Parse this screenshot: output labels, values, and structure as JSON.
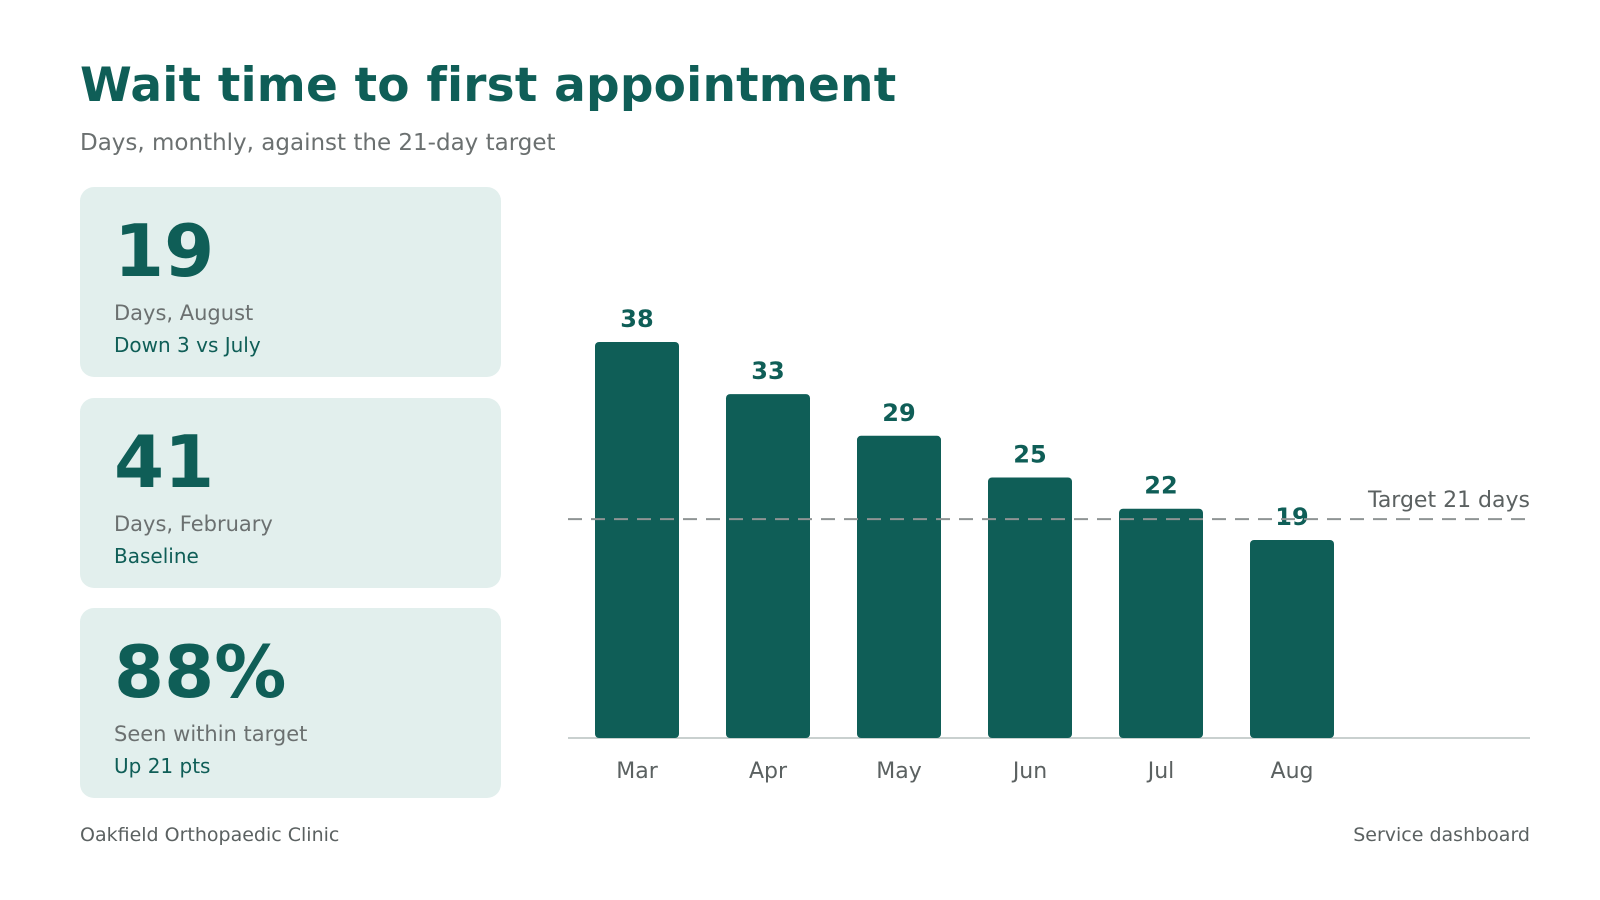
{
  "header": {
    "title": "Wait time to first appointment",
    "subtitle": "Days, monthly, against the 21-day target"
  },
  "kpis": [
    {
      "value": "19",
      "label": "Days, August",
      "note": "Down 3 vs July"
    },
    {
      "value": "41",
      "label": "Days, February",
      "note": "Baseline"
    },
    {
      "value": "88%",
      "label": "Seen within target",
      "note": "Up 21 pts"
    }
  ],
  "chart_data": {
    "type": "bar",
    "categories": [
      "Mar",
      "Apr",
      "May",
      "Jun",
      "Jul",
      "Aug"
    ],
    "values": [
      38,
      33,
      29,
      25,
      22,
      19
    ],
    "target": 21,
    "target_label": "Target 21 days",
    "ylim": [
      0,
      38
    ],
    "xlabel": "",
    "ylabel": "",
    "grid": false,
    "data_labels": true,
    "colors": {
      "bar": "#0f5e57",
      "label": "#0f5e57",
      "axis_text": "#5b6161",
      "baseline": "#c9d0cf",
      "target_line": "#8f9494"
    }
  },
  "footer": {
    "left": "Oakfield Orthopaedic Clinic",
    "right": "Service dashboard"
  }
}
